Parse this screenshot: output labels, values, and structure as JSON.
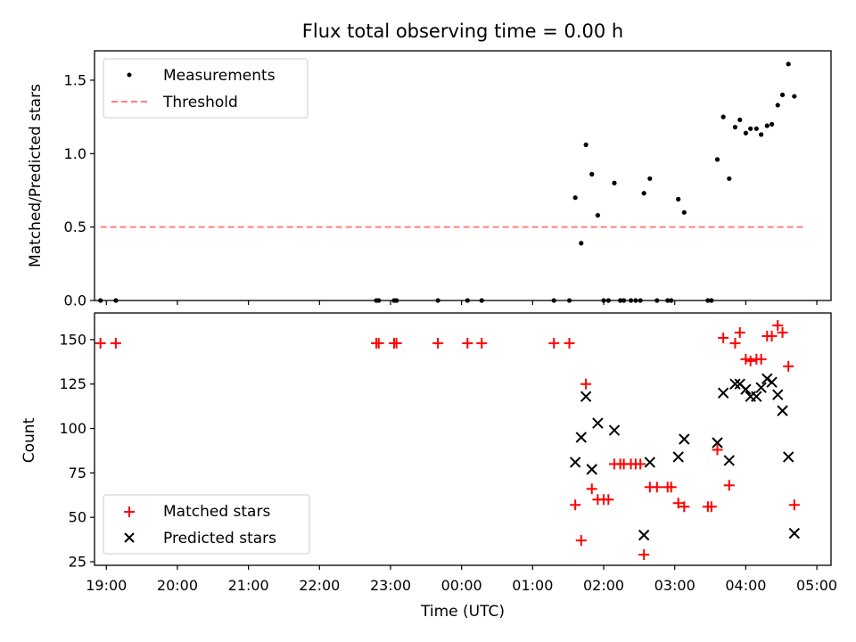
{
  "chart_data": [
    {
      "type": "scatter",
      "title": "Flux total observing time = 0.00 h",
      "xlabel": "",
      "ylabel": "Matched/Predicted stars",
      "xlim": [
        "18:50",
        "05:12"
      ],
      "ylim": [
        0,
        1.7
      ],
      "yticks": [
        0.0,
        0.5,
        1.0,
        1.5
      ],
      "ytick_labels": [
        "0.0",
        "0.5",
        "1.0",
        "1.5"
      ],
      "legend": {
        "placement": "upper-left",
        "entries": [
          "Measurements",
          "Threshold"
        ]
      },
      "threshold": {
        "name": "Threshold",
        "value": 0.5,
        "x_range": [
          "18:55",
          "04:50"
        ],
        "color": "#ff8080",
        "style": "dashed"
      },
      "series": [
        {
          "name": "Measurements",
          "color": "#000000",
          "marker": "dot",
          "points": [
            [
              "18:55",
              0.0
            ],
            [
              "19:08",
              0.0
            ],
            [
              "22:48",
              0.0
            ],
            [
              "22:50",
              0.0
            ],
            [
              "23:03",
              0.0
            ],
            [
              "23:05",
              0.0
            ],
            [
              "23:40",
              0.0
            ],
            [
              "00:05",
              0.0
            ],
            [
              "00:17",
              0.0
            ],
            [
              "01:18",
              0.0
            ],
            [
              "01:31",
              0.0
            ],
            [
              "01:36",
              0.7
            ],
            [
              "01:41",
              0.39
            ],
            [
              "01:45",
              1.06
            ],
            [
              "01:50",
              0.86
            ],
            [
              "01:55",
              0.58
            ],
            [
              "02:00",
              0.0
            ],
            [
              "02:04",
              0.0
            ],
            [
              "02:09",
              0.8
            ],
            [
              "02:14",
              0.0
            ],
            [
              "02:17",
              0.0
            ],
            [
              "02:23",
              0.0
            ],
            [
              "02:27",
              0.0
            ],
            [
              "02:31",
              0.0
            ],
            [
              "02:34",
              0.73
            ],
            [
              "02:39",
              0.83
            ],
            [
              "02:45",
              0.0
            ],
            [
              "02:54",
              0.0
            ],
            [
              "02:57",
              0.0
            ],
            [
              "03:03",
              0.69
            ],
            [
              "03:08",
              0.6
            ],
            [
              "03:28",
              0.0
            ],
            [
              "03:31",
              0.0
            ],
            [
              "03:36",
              0.96
            ],
            [
              "03:41",
              1.25
            ],
            [
              "03:46",
              0.83
            ],
            [
              "03:51",
              1.18
            ],
            [
              "03:55",
              1.23
            ],
            [
              "04:00",
              1.14
            ],
            [
              "04:04",
              1.17
            ],
            [
              "04:09",
              1.17
            ],
            [
              "04:13",
              1.13
            ],
            [
              "04:18",
              1.19
            ],
            [
              "04:22",
              1.2
            ],
            [
              "04:27",
              1.33
            ],
            [
              "04:31",
              1.4
            ],
            [
              "04:36",
              1.61
            ],
            [
              "04:41",
              1.39
            ]
          ]
        }
      ]
    },
    {
      "type": "scatter",
      "title": "",
      "xlabel": "Time (UTC)",
      "ylabel": "Count",
      "xlim": [
        "18:50",
        "05:12"
      ],
      "ylim": [
        23,
        165
      ],
      "yticks": [
        25,
        50,
        75,
        100,
        125,
        150
      ],
      "ytick_labels": [
        "25",
        "50",
        "75",
        "100",
        "125",
        "150"
      ],
      "xticks": [
        "19:00",
        "20:00",
        "21:00",
        "22:00",
        "23:00",
        "00:00",
        "01:00",
        "02:00",
        "03:00",
        "04:00",
        "05:00"
      ],
      "legend": {
        "placement": "lower-left",
        "entries": [
          "Matched stars",
          "Predicted stars"
        ]
      },
      "series": [
        {
          "name": "Matched stars",
          "color": "#ff0000",
          "marker": "plus",
          "points": [
            [
              "18:55",
              148
            ],
            [
              "19:08",
              148
            ],
            [
              "22:48",
              148
            ],
            [
              "22:50",
              148
            ],
            [
              "23:03",
              148
            ],
            [
              "23:05",
              148
            ],
            [
              "23:40",
              148
            ],
            [
              "00:05",
              148
            ],
            [
              "00:17",
              148
            ],
            [
              "01:18",
              148
            ],
            [
              "01:31",
              148
            ],
            [
              "01:36",
              57
            ],
            [
              "01:41",
              37
            ],
            [
              "01:45",
              125
            ],
            [
              "01:50",
              66
            ],
            [
              "01:55",
              60
            ],
            [
              "02:00",
              60
            ],
            [
              "02:04",
              60
            ],
            [
              "02:09",
              80
            ],
            [
              "02:14",
              80
            ],
            [
              "02:17",
              80
            ],
            [
              "02:23",
              80
            ],
            [
              "02:27",
              80
            ],
            [
              "02:31",
              80
            ],
            [
              "02:34",
              29
            ],
            [
              "02:39",
              67
            ],
            [
              "02:45",
              67
            ],
            [
              "02:54",
              67
            ],
            [
              "02:57",
              67
            ],
            [
              "03:03",
              58
            ],
            [
              "03:08",
              56
            ],
            [
              "03:28",
              56
            ],
            [
              "03:31",
              56
            ],
            [
              "03:36",
              88
            ],
            [
              "03:41",
              151
            ],
            [
              "03:46",
              68
            ],
            [
              "03:51",
              148
            ],
            [
              "03:55",
              154
            ],
            [
              "04:00",
              139
            ],
            [
              "04:04",
              138
            ],
            [
              "04:09",
              139
            ],
            [
              "04:13",
              139
            ],
            [
              "04:18",
              152
            ],
            [
              "04:22",
              152
            ],
            [
              "04:27",
              158
            ],
            [
              "04:31",
              154
            ],
            [
              "04:36",
              135
            ],
            [
              "04:41",
              57
            ]
          ]
        },
        {
          "name": "Predicted stars",
          "color": "#000000",
          "marker": "x",
          "points": [
            [
              "01:36",
              81
            ],
            [
              "01:41",
              95
            ],
            [
              "01:45",
              118
            ],
            [
              "01:50",
              77
            ],
            [
              "01:55",
              103
            ],
            [
              "02:09",
              99
            ],
            [
              "02:34",
              40
            ],
            [
              "02:39",
              81
            ],
            [
              "03:03",
              84
            ],
            [
              "03:08",
              94
            ],
            [
              "03:36",
              92
            ],
            [
              "03:41",
              120
            ],
            [
              "03:46",
              82
            ],
            [
              "03:51",
              125
            ],
            [
              "03:55",
              125
            ],
            [
              "04:00",
              122
            ],
            [
              "04:04",
              118
            ],
            [
              "04:09",
              118
            ],
            [
              "04:13",
              123
            ],
            [
              "04:18",
              128
            ],
            [
              "04:22",
              126
            ],
            [
              "04:27",
              119
            ],
            [
              "04:31",
              110
            ],
            [
              "04:36",
              84
            ],
            [
              "04:41",
              41
            ]
          ]
        }
      ]
    }
  ]
}
